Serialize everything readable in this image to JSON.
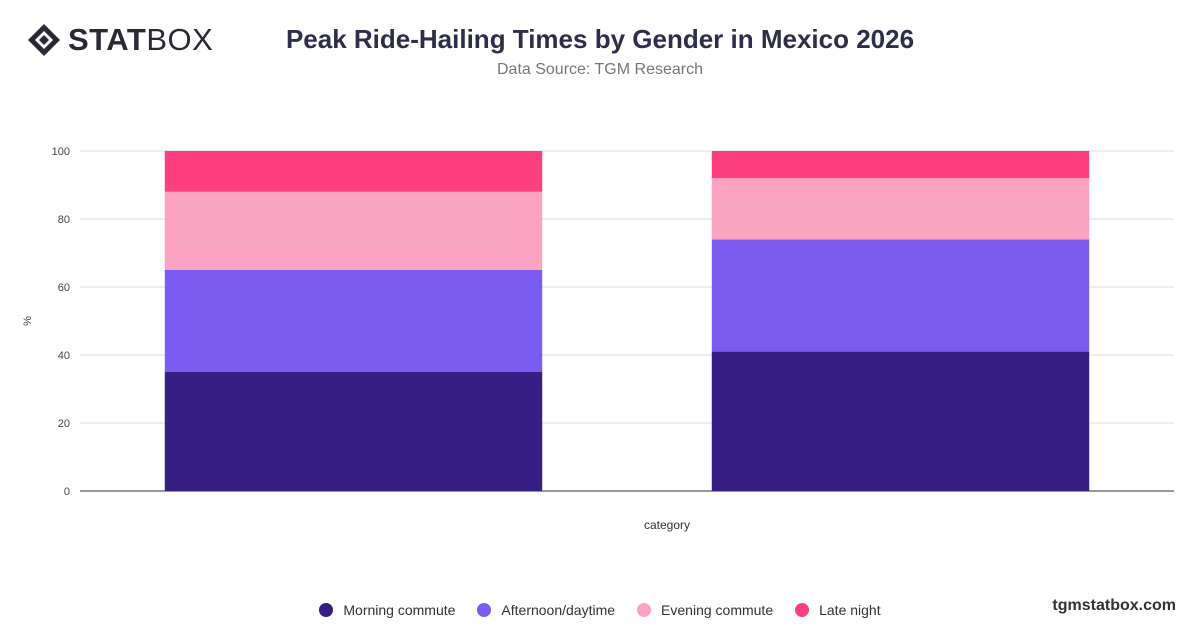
{
  "brand": {
    "logo_bold": "STAT",
    "logo_light": "BOX",
    "footer": "tgmstatbox.com"
  },
  "header": {
    "title": "Peak Ride-Hailing Times by Gender in Mexico 2026",
    "subtitle": "Data Source: TGM Research"
  },
  "chart_data": {
    "type": "bar",
    "stacked": true,
    "title": "Peak Ride-Hailing Times by Gender in Mexico 2026",
    "subtitle": "Data Source: TGM Research",
    "xlabel": "category",
    "ylabel": "%",
    "ylim": [
      0,
      100
    ],
    "yticks": [
      0,
      20,
      40,
      60,
      80,
      100
    ],
    "categories": [
      "",
      ""
    ],
    "grid": true,
    "legend_position": "bottom",
    "series": [
      {
        "name": "Morning commute",
        "color": "#371e85",
        "values": [
          35,
          41
        ]
      },
      {
        "name": "Afternoon/daytime",
        "color": "#7b5cf0",
        "values": [
          30,
          33
        ]
      },
      {
        "name": "Evening commute",
        "color": "#fda3c2",
        "values": [
          23,
          18
        ]
      },
      {
        "name": "Late night",
        "color": "#fd3f7f",
        "values": [
          12,
          8
        ]
      }
    ]
  }
}
